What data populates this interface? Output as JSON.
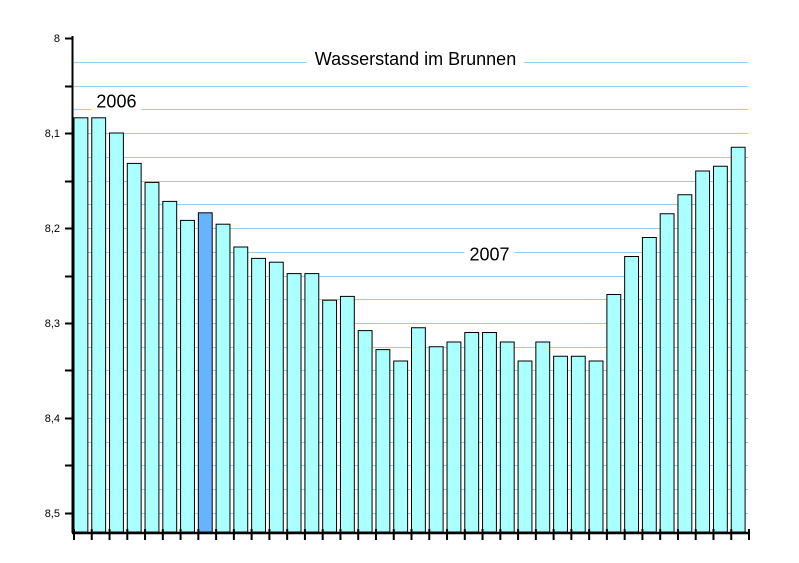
{
  "chart_data": {
    "type": "bar",
    "title": "Wasserstand im Brunnen",
    "xlabel": "",
    "ylabel": "",
    "y_inverted": true,
    "ylim": [
      8.0,
      8.52
    ],
    "y_ticks": [
      {
        "value": 8.0,
        "label": "8"
      },
      {
        "value": 8.1,
        "label": "8,1"
      },
      {
        "value": 8.2,
        "label": "8,2"
      },
      {
        "value": 8.3,
        "label": "8,3"
      },
      {
        "value": 8.4,
        "label": "8,4"
      },
      {
        "value": 8.5,
        "label": "8,5"
      }
    ],
    "y_minor_step": 0.05,
    "gridline_step": 0.025,
    "grid": true,
    "colors": {
      "bar": "#aaffff",
      "bar_highlight": "#66b3ff",
      "grid": "#99ccee",
      "axis": "#000000"
    },
    "highlight_index": 7,
    "values": [
      8.084,
      8.084,
      8.1,
      8.132,
      8.152,
      8.172,
      8.192,
      8.184,
      8.196,
      8.22,
      8.232,
      8.236,
      8.248,
      8.248,
      8.276,
      8.272,
      8.308,
      8.328,
      8.34,
      8.305,
      8.325,
      8.32,
      8.31,
      8.31,
      8.32,
      8.34,
      8.32,
      8.335,
      8.335,
      8.34,
      8.27,
      8.23,
      8.21,
      8.185,
      8.165,
      8.14,
      8.135,
      8.115
    ],
    "annotations": [
      {
        "text": "2006",
        "x_index": 2,
        "y": 8.067
      },
      {
        "text": "2007",
        "x_index": 23,
        "y": 8.228
      }
    ]
  }
}
